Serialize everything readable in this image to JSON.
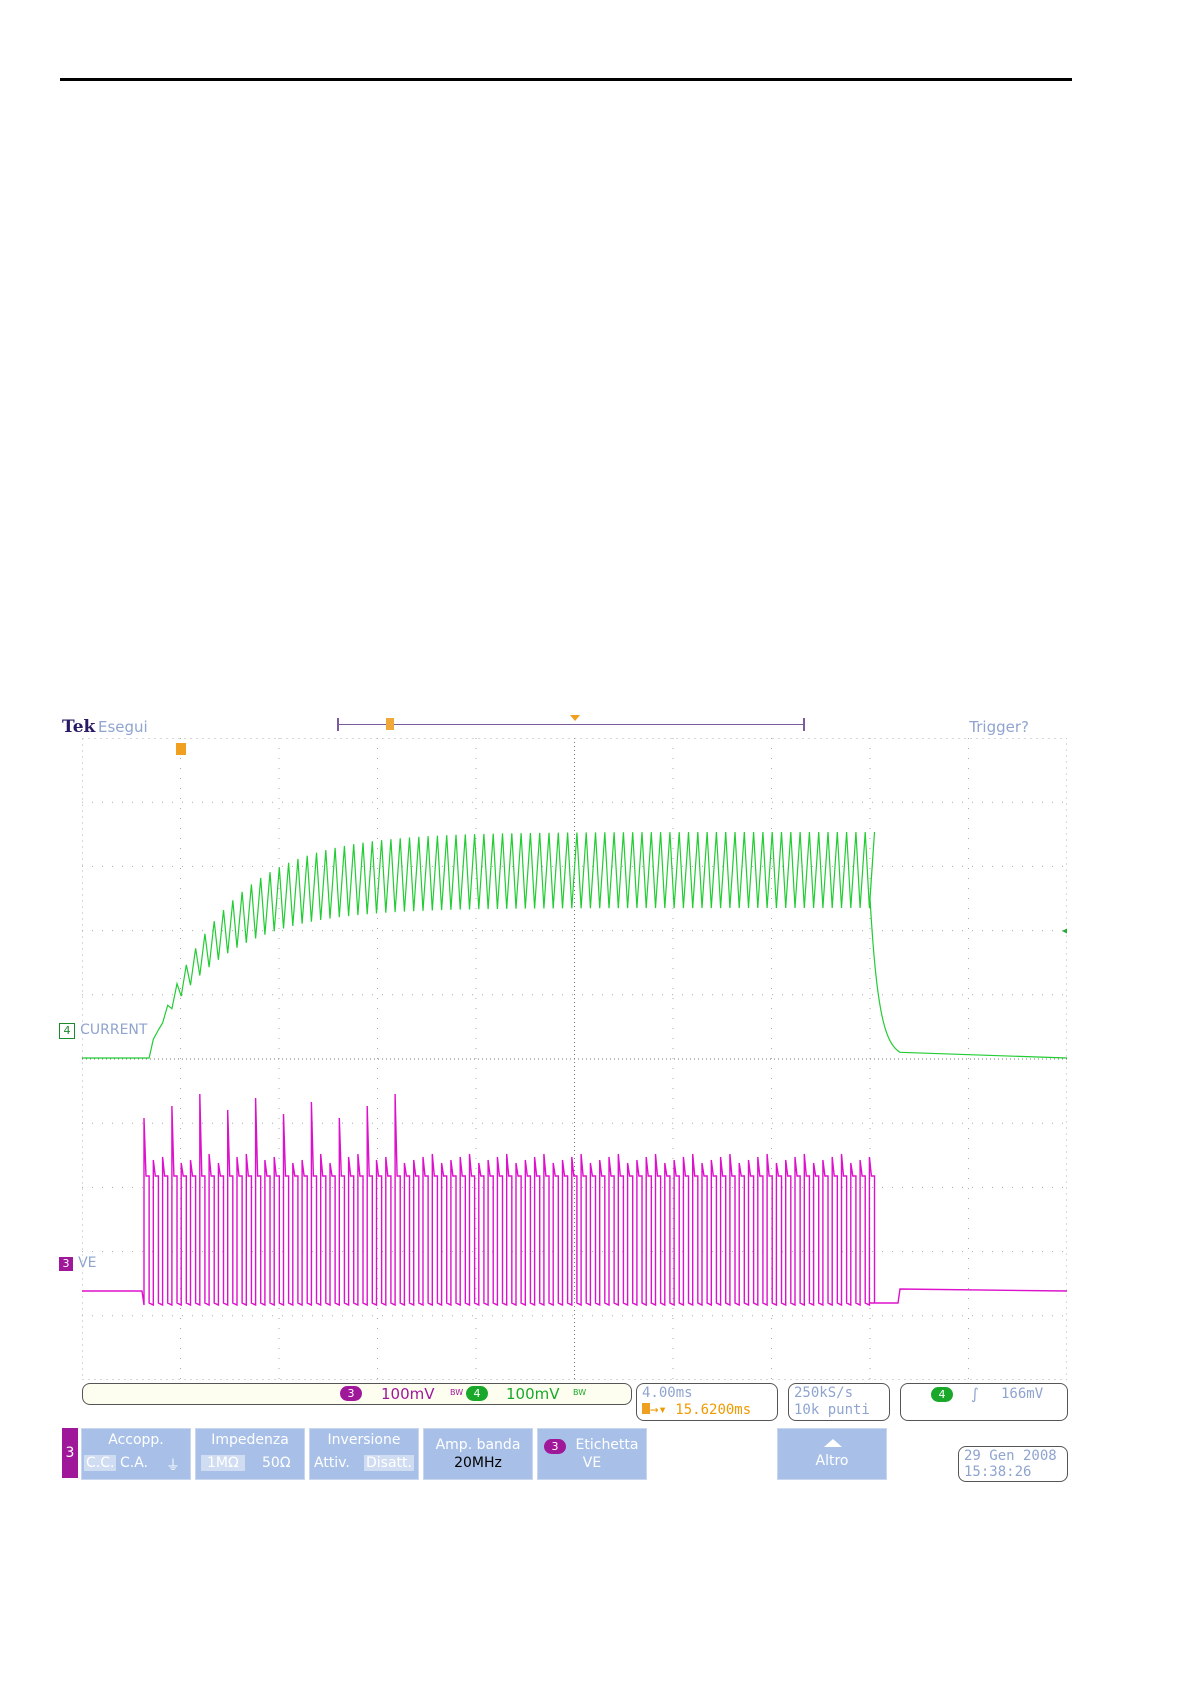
{
  "header": {
    "brand": "Tek",
    "run_state": "Esegui",
    "trigger_state": "Trigger?"
  },
  "channels": {
    "ch4": {
      "number": "4",
      "label": "CURRENT",
      "color": "#22cc33"
    },
    "ch3": {
      "number": "3",
      "label": "VE",
      "color": "#dd11cc"
    }
  },
  "status": {
    "ch3_number": "3",
    "ch3_scale": "100mV",
    "ch4_number": "4",
    "ch4_scale": "100mV",
    "bw_mark": "BW",
    "timebase": "4.00ms",
    "trigger_delay": "15.6200ms",
    "sample_rate": "250kS/s",
    "record_length": "10k punti",
    "trigger_channel": "4",
    "trigger_level": "166mV"
  },
  "menu": {
    "channel": "3",
    "coupling": {
      "title": "Accopp.",
      "options": [
        "C.C.",
        "C.A.",
        "⏚"
      ]
    },
    "impedance": {
      "title": "Impedenza",
      "options": [
        "1MΩ",
        "50Ω"
      ]
    },
    "invert": {
      "title": "Inversione",
      "options": [
        "Attiv.",
        "Disatt."
      ]
    },
    "bandwidth": {
      "title": "Amp. banda",
      "value": "20MHz"
    },
    "label": {
      "channel": "3",
      "title": "Etichetta",
      "value": "VE"
    },
    "more": {
      "title": "Altro"
    }
  },
  "datetime": {
    "date": "29 Gen 2008",
    "time": "15:38:26"
  },
  "colors": {
    "accent_blue": "#a8c0e8",
    "grid": "#9a9a9a",
    "trigger": "#f0a020"
  }
}
